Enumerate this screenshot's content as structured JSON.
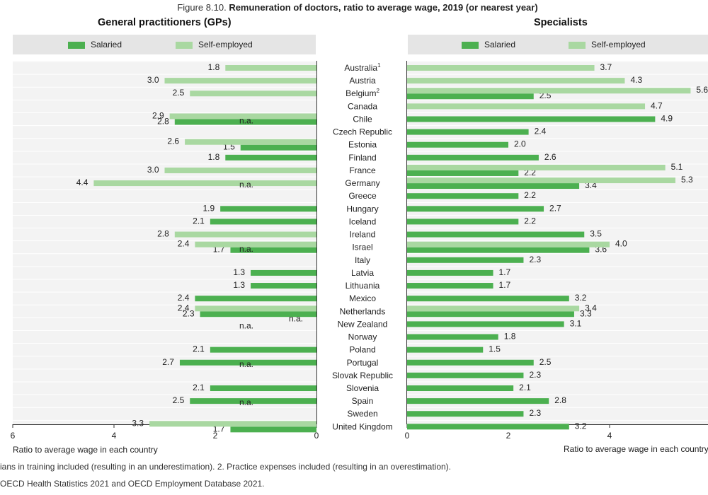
{
  "figure": {
    "number": "Figure 8.10.",
    "title": "Remuneration of doctors, ratio to average wage, 2019 (or nearest year)"
  },
  "colors": {
    "salaried": "#4cb050",
    "self_employed": "#a9d8a1",
    "panel_bg": "#e5e5e5",
    "plot_bg": "#f3f3f3"
  },
  "legend": {
    "salaried": "Salaried",
    "self_employed": "Self-employed"
  },
  "footnotes": {
    "note": "ians in training included (resulting in an underestimation). 2. Practice expenses included (resulting in an overestimation).",
    "source": "OECD Health Statistics 2021 and OECD Employment Database 2021."
  },
  "chart_data": [
    {
      "type": "bar",
      "orientation": "horizontal",
      "title": "General practitioners (GPs)",
      "xlabel": "Ratio to average wage in each country",
      "xlim": [
        6,
        0
      ],
      "x_reversed": true,
      "xticks": [
        "6",
        "4",
        "2",
        "0"
      ],
      "grid": true,
      "legend_position": "top",
      "categories": [
        "Australia",
        "Austria",
        "Belgium",
        "Canada",
        "Chile",
        "Czech Republic",
        "Estonia",
        "Finland",
        "France",
        "Germany",
        "Greece",
        "Hungary",
        "Iceland",
        "Ireland",
        "Israel",
        "Italy",
        "Latvia",
        "Lithuania",
        "Mexico",
        "Netherlands",
        "New Zealand",
        "Norway",
        "Poland",
        "Portugal",
        "Slovak Republic",
        "Slovenia",
        "Spain",
        "Sweden",
        "United Kingdom"
      ],
      "series": [
        {
          "name": "Salaried",
          "values": [
            null,
            null,
            null,
            null,
            2.8,
            null,
            1.5,
            1.8,
            null,
            null,
            null,
            1.9,
            2.1,
            null,
            1.7,
            null,
            1.3,
            1.3,
            2.4,
            2.3,
            null,
            null,
            2.1,
            2.7,
            null,
            2.1,
            2.5,
            null,
            1.7
          ]
        },
        {
          "name": "Self-employed",
          "values": [
            1.8,
            3.0,
            2.5,
            null,
            2.9,
            null,
            2.6,
            null,
            3.0,
            4.4,
            null,
            null,
            null,
            2.8,
            2.4,
            null,
            null,
            null,
            null,
            2.4,
            null,
            null,
            null,
            null,
            null,
            null,
            null,
            null,
            3.3
          ]
        }
      ],
      "na_labels": [
        "Czech Republic",
        "Greece",
        "Italy",
        "New Zealand",
        "Norway",
        "Slovak Republic",
        "Sweden"
      ],
      "na_text": "n.a."
    },
    {
      "type": "bar",
      "orientation": "horizontal",
      "title": "Specialists",
      "xlabel": "Ratio to average wage in each country",
      "xlim": [
        0,
        6
      ],
      "xticks": [
        "0",
        "2",
        "4",
        "6"
      ],
      "grid": true,
      "legend_position": "top",
      "categories": [
        "Australia",
        "Austria",
        "Belgium",
        "Canada",
        "Chile",
        "Czech Republic",
        "Estonia",
        "Finland",
        "France",
        "Germany",
        "Greece",
        "Hungary",
        "Iceland",
        "Ireland",
        "Israel",
        "Italy",
        "Latvia",
        "Lithuania",
        "Mexico",
        "Netherlands",
        "New Zealand",
        "Norway",
        "Poland",
        "Portugal",
        "Slovak Republic",
        "Slovenia",
        "Spain",
        "Sweden",
        "United Kingdom"
      ],
      "series": [
        {
          "name": "Salaried",
          "values": [
            null,
            null,
            2.5,
            null,
            4.9,
            2.4,
            2.0,
            2.6,
            2.2,
            3.4,
            2.2,
            2.7,
            2.2,
            3.5,
            3.6,
            2.3,
            1.7,
            1.7,
            3.2,
            3.3,
            3.1,
            1.8,
            1.5,
            2.5,
            2.3,
            2.1,
            2.8,
            2.3,
            3.2
          ]
        },
        {
          "name": "Self-employed",
          "values": [
            3.7,
            4.3,
            5.6,
            4.7,
            null,
            null,
            null,
            null,
            5.1,
            5.3,
            null,
            null,
            null,
            null,
            4.0,
            null,
            null,
            null,
            null,
            3.4,
            null,
            null,
            null,
            null,
            null,
            null,
            null,
            null,
            null
          ]
        }
      ]
    }
  ],
  "country_labels": [
    {
      "name": "Australia",
      "sup": "1"
    },
    {
      "name": "Austria",
      "sup": ""
    },
    {
      "name": "Belgium",
      "sup": "2"
    },
    {
      "name": "Canada",
      "sup": ""
    },
    {
      "name": "Chile",
      "sup": ""
    },
    {
      "name": "Czech Republic",
      "sup": ""
    },
    {
      "name": "Estonia",
      "sup": ""
    },
    {
      "name": "Finland",
      "sup": ""
    },
    {
      "name": "France",
      "sup": ""
    },
    {
      "name": "Germany",
      "sup": ""
    },
    {
      "name": "Greece",
      "sup": ""
    },
    {
      "name": "Hungary",
      "sup": ""
    },
    {
      "name": "Iceland",
      "sup": ""
    },
    {
      "name": "Ireland",
      "sup": ""
    },
    {
      "name": "Israel",
      "sup": ""
    },
    {
      "name": "Italy",
      "sup": ""
    },
    {
      "name": "Latvia",
      "sup": ""
    },
    {
      "name": "Lithuania",
      "sup": ""
    },
    {
      "name": "Mexico",
      "sup": ""
    },
    {
      "name": "Netherlands",
      "sup": ""
    },
    {
      "name": "New Zealand",
      "sup": ""
    },
    {
      "name": "Norway",
      "sup": ""
    },
    {
      "name": "Poland",
      "sup": ""
    },
    {
      "name": "Portugal",
      "sup": ""
    },
    {
      "name": "Slovak Republic",
      "sup": ""
    },
    {
      "name": "Slovenia",
      "sup": ""
    },
    {
      "name": "Spain",
      "sup": ""
    },
    {
      "name": "Sweden",
      "sup": ""
    },
    {
      "name": "United Kingdom",
      "sup": ""
    }
  ]
}
